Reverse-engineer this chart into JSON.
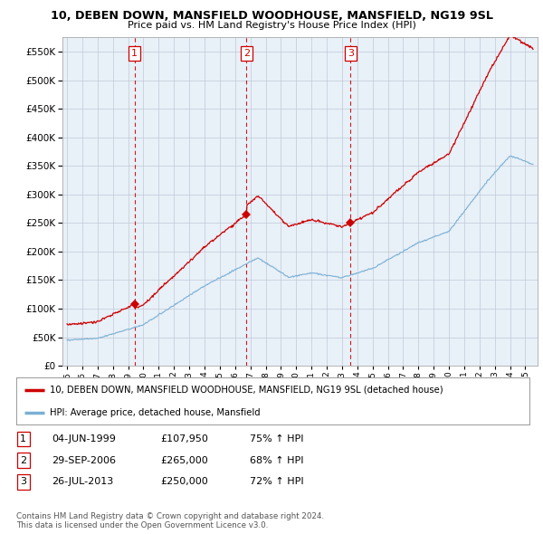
{
  "title": "10, DEBEN DOWN, MANSFIELD WOODHOUSE, MANSFIELD, NG19 9SL",
  "subtitle": "Price paid vs. HM Land Registry's House Price Index (HPI)",
  "ylim": [
    0,
    575000
  ],
  "yticks": [
    0,
    50000,
    100000,
    150000,
    200000,
    250000,
    300000,
    350000,
    400000,
    450000,
    500000,
    550000
  ],
  "legend_line1": "10, DEBEN DOWN, MANSFIELD WOODHOUSE, MANSFIELD, NG19 9SL (detached house)",
  "legend_line2": "HPI: Average price, detached house, Mansfield",
  "table_rows": [
    [
      "1",
      "04-JUN-1999",
      "£107,950",
      "75% ↑ HPI"
    ],
    [
      "2",
      "29-SEP-2006",
      "£265,000",
      "68% ↑ HPI"
    ],
    [
      "3",
      "26-JUL-2013",
      "£250,000",
      "72% ↑ HPI"
    ]
  ],
  "footer": "Contains HM Land Registry data © Crown copyright and database right 2024.\nThis data is licensed under the Open Government Licence v3.0.",
  "sale_markers": [
    {
      "year": 1999.42,
      "value": 107950,
      "label": "1"
    },
    {
      "year": 2006.75,
      "value": 265000,
      "label": "2"
    },
    {
      "year": 2013.56,
      "value": 250000,
      "label": "3"
    }
  ],
  "vlines_x": [
    1999.42,
    2006.75,
    2013.56
  ],
  "vline_labels": [
    "1",
    "2",
    "3"
  ],
  "red_line_color": "#cc0000",
  "blue_line_color": "#7ab0d4",
  "chart_bg_color": "#e8f0f8",
  "grid_color": "#c0c8d8",
  "background_color": "#ffffff",
  "xlim_start": 1994.7,
  "xlim_end": 2025.8
}
